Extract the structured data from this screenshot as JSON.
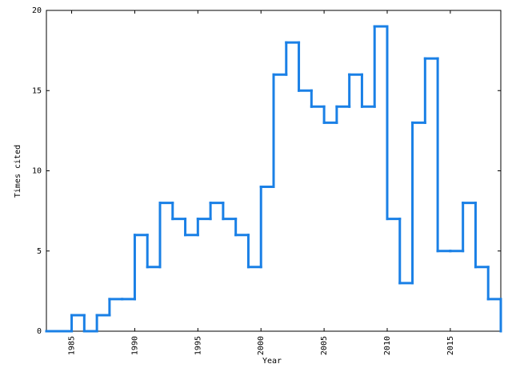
{
  "chart_data": {
    "type": "histogram",
    "x_label": "Year",
    "y_label": "Times cited",
    "bins": [
      1983,
      1984,
      1985,
      1986,
      1987,
      1988,
      1989,
      1990,
      1991,
      1992,
      1993,
      1994,
      1995,
      1996,
      1997,
      1998,
      1999,
      2000,
      2001,
      2002,
      2003,
      2004,
      2005,
      2006,
      2007,
      2008,
      2009,
      2010,
      2011,
      2012,
      2013,
      2014,
      2015,
      2016,
      2017,
      2018,
      2019
    ],
    "values": [
      0,
      0,
      1,
      0,
      1,
      2,
      2,
      6,
      4,
      8,
      7,
      6,
      7,
      8,
      7,
      6,
      4,
      9,
      16,
      18,
      15,
      14,
      13,
      14,
      16,
      14,
      19,
      7,
      3,
      13,
      17,
      5,
      5,
      8,
      4,
      2
    ],
    "color": "#1a80e6",
    "xlim": [
      1983,
      2019
    ],
    "xticks": [
      1985,
      1990,
      1995,
      2000,
      2005,
      2010,
      2015
    ],
    "ylim": [
      0,
      20
    ],
    "yticks": [
      0,
      5,
      10,
      15,
      20
    ]
  }
}
